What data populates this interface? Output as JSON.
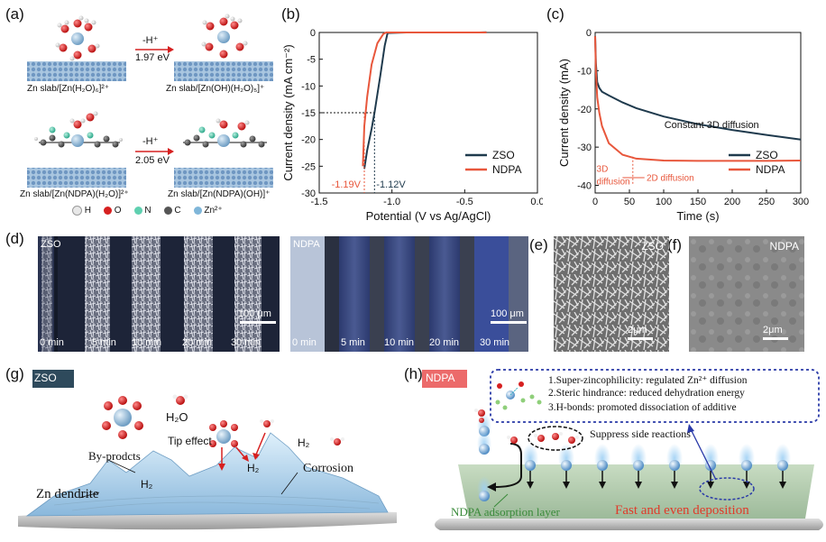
{
  "panel_labels": {
    "a": "(a)",
    "b": "(b)",
    "c": "(c)",
    "d": "(d)",
    "e": "(e)",
    "f": "(f)",
    "g": "(g)",
    "h": "(h)"
  },
  "panel_a": {
    "row1": {
      "step": "-H⁺",
      "energy": "1.97 eV",
      "left_caption": "Zn slab/[Zn(H₂O)₆]²⁺",
      "right_caption": "Zn slab/[Zn(OH)(H₂O)₅]⁺"
    },
    "row2": {
      "step": "-H⁺",
      "energy": "2.05 eV",
      "left_caption": "Zn slab/[Zn(NDPA)(H₂O)]²⁺",
      "right_caption": "Zn slab/[Zn(NDPA)(OH)]⁺"
    },
    "legend": [
      {
        "label": "H",
        "color": "#e8e8e8"
      },
      {
        "label": "O",
        "color": "#d62020"
      },
      {
        "label": "N",
        "color": "#5fd0b0"
      },
      {
        "label": "C",
        "color": "#555555"
      },
      {
        "label": "Zn²⁺",
        "color": "#7fb6d9"
      }
    ]
  },
  "chart_data": [
    {
      "type": "line",
      "panel": "b",
      "xlabel": "Potential (V vs Ag/AgCl)",
      "ylabel": "Current density (mA cm⁻²)",
      "xlim": [
        -1.5,
        0.0
      ],
      "ylim": [
        -30,
        0
      ],
      "xticks": [
        "-1.5",
        "-1.0",
        "-0.5",
        "0.0"
      ],
      "yticks": [
        "0",
        "-5",
        "-10",
        "-15",
        "-20",
        "-25",
        "-30"
      ],
      "legend_position": "bottom-right",
      "series": [
        {
          "name": "ZSO",
          "color": "#1f3a4d",
          "x": [
            -1.19,
            -1.17,
            -1.14,
            -1.12,
            -1.08,
            -1.05,
            -1.03,
            -0.9,
            -0.6,
            -0.4,
            -0.35
          ],
          "y": [
            -25.5,
            -22,
            -18,
            -15,
            -8,
            -2.5,
            -0.1,
            0.0,
            0.0,
            0.0,
            0.05
          ]
        },
        {
          "name": "NDPA",
          "color": "#e8573c",
          "x": [
            -1.2,
            -1.19,
            -1.17,
            -1.14,
            -1.1,
            -1.06,
            -1.04,
            -0.9,
            -0.6,
            -0.4,
            -0.35
          ],
          "y": [
            -25,
            -17.5,
            -12,
            -6,
            -2,
            -0.3,
            0.0,
            0.0,
            0.0,
            0.0,
            0.0
          ]
        }
      ],
      "annotations": [
        {
          "text": "-1.19V",
          "color": "#e8573c"
        },
        {
          "text": "-1.12V",
          "color": "#1f3a4d"
        }
      ],
      "guide_y": -15
    },
    {
      "type": "line",
      "panel": "c",
      "xlabel": "Time (s)",
      "ylabel": "Current density (mA)",
      "xlim": [
        0,
        300
      ],
      "ylim": [
        -42,
        0
      ],
      "xticks": [
        "0",
        "50",
        "100",
        "150",
        "200",
        "250",
        "300"
      ],
      "yticks": [
        "0",
        "-10",
        "-20",
        "-30",
        "-40"
      ],
      "legend_position": "bottom-right",
      "series": [
        {
          "name": "ZSO",
          "color": "#1f3a4d",
          "x": [
            0,
            1,
            3,
            6,
            10,
            20,
            40,
            60,
            100,
            150,
            200,
            250,
            300
          ],
          "y": [
            -1,
            -8,
            -13,
            -14.5,
            -15.5,
            -16.5,
            -18.3,
            -19.8,
            -22,
            -24,
            -25.5,
            -26.8,
            -28
          ]
        },
        {
          "name": "NDPA",
          "color": "#e8573c",
          "x": [
            0,
            1,
            3,
            6,
            10,
            20,
            40,
            60,
            100,
            150,
            200,
            250,
            300
          ],
          "y": [
            -1,
            -10,
            -17,
            -21,
            -24.5,
            -29,
            -32,
            -33,
            -33.5,
            -33.6,
            -33.6,
            -33.6,
            -33.5
          ]
        }
      ],
      "annotations": [
        {
          "text": "Constant 3D diffusion",
          "color": "#111111"
        },
        {
          "text": "3D diffusion",
          "color": "#e8573c"
        },
        {
          "text": "2D diffusion",
          "color": "#e8573c"
        }
      ]
    }
  ],
  "panel_d": {
    "zso_label": "ZSO",
    "ndpa_label": "NDPA",
    "times": [
      "0 min",
      "5 min",
      "10 min",
      "20 min",
      "30 min"
    ],
    "scale": "100 μm"
  },
  "panel_e": {
    "label": "ZSO",
    "scale": "2μm"
  },
  "panel_f": {
    "label": "NDPA",
    "scale": "2μm"
  },
  "panel_g": {
    "badge": "ZSO",
    "h2o": "H₂O",
    "tip_effect": "Tip effect",
    "h2_1": "H₂",
    "h2_2": "H₂",
    "h2_3": "H₂",
    "byproducts": "By-prodcts",
    "corrosion": "Corrosion",
    "dendrite": "Zn dendrite"
  },
  "panel_h": {
    "badge": "NDPA",
    "points": [
      "1.Super-zincophilicity: regulated Zn²⁺ diffusion",
      "2.Steric hindrance: reduced dehydration energy",
      "3.H-bonds: promoted dissociation of additive"
    ],
    "suppress": "Suppress side reactions",
    "adsorption": "NDPA adsorption layer",
    "deposition": "Fast and even deposition"
  },
  "colors": {
    "zso": "#1f3a4d",
    "ndpa": "#e8573c",
    "badge_zso": "#2e4a5c",
    "badge_ndpa": "#ec6a6a",
    "zinc_blue": "#9cc8ea"
  }
}
